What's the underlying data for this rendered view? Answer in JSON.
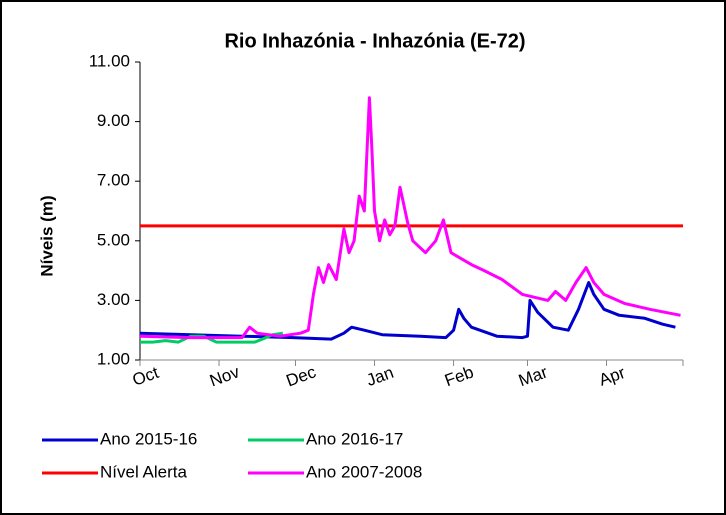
{
  "chart_data": {
    "type": "line",
    "title": "Rio Inhazónia - Inhazónia (E-72)",
    "y_label": "Níveis (m)",
    "xlim": [
      0,
      213
    ],
    "ylim": [
      1,
      11
    ],
    "xticks": [
      {
        "value": 0,
        "label": "Oct"
      },
      {
        "value": 31,
        "label": "Nov"
      },
      {
        "value": 61,
        "label": "Dec"
      },
      {
        "value": 92,
        "label": "Jan"
      },
      {
        "value": 123,
        "label": "Feb"
      },
      {
        "value": 152,
        "label": "Mar"
      },
      {
        "value": 183,
        "label": "Apr"
      },
      213
    ],
    "yticks": [
      {
        "value": 1,
        "label": "1.00"
      },
      {
        "value": 3,
        "label": "3.00"
      },
      {
        "value": 5,
        "label": "5.00"
      },
      {
        "value": 7,
        "label": "7.00"
      },
      {
        "value": 9,
        "label": "9.00"
      },
      {
        "value": 11,
        "label": "11.00"
      }
    ],
    "series": [
      {
        "name": "Ano 2015-16",
        "color": "#0000cc",
        "x": [
          0,
          20,
          40,
          60,
          75,
          80,
          83,
          88,
          95,
          110,
          120,
          123,
          125,
          127,
          130,
          140,
          150,
          152,
          153,
          156,
          162,
          168,
          172,
          176,
          178,
          182,
          188,
          198,
          205,
          210
        ],
        "values": [
          1.9,
          1.85,
          1.8,
          1.75,
          1.7,
          1.9,
          2.1,
          2.0,
          1.85,
          1.8,
          1.75,
          2.0,
          2.7,
          2.4,
          2.1,
          1.8,
          1.75,
          1.8,
          3.0,
          2.6,
          2.1,
          2.0,
          2.7,
          3.6,
          3.2,
          2.7,
          2.5,
          2.4,
          2.2,
          2.1
        ]
      },
      {
        "name": "Ano 2016-17",
        "color": "#00cc66",
        "x": [
          0,
          5,
          10,
          15,
          20,
          25,
          30,
          35,
          40,
          45,
          48,
          52,
          56
        ],
        "values": [
          1.6,
          1.6,
          1.65,
          1.6,
          1.8,
          1.8,
          1.6,
          1.6,
          1.6,
          1.6,
          1.7,
          1.85,
          1.9
        ]
      },
      {
        "name": "Nível Alerta",
        "color": "#ff0000",
        "x": [
          0,
          213
        ],
        "values": [
          5.5,
          5.5
        ]
      },
      {
        "name": "Ano 2007-2008",
        "color": "#ff00ff",
        "x": [
          0,
          20,
          40,
          43,
          46,
          55,
          63,
          66,
          68,
          70,
          72,
          74,
          77,
          80,
          82,
          84,
          86,
          88,
          90,
          91,
          92,
          94,
          96,
          98,
          100,
          102,
          103,
          105,
          107,
          112,
          116,
          119,
          122,
          130,
          135,
          142,
          150,
          155,
          160,
          163,
          167,
          171,
          175,
          178,
          182,
          190,
          200,
          212
        ],
        "values": [
          1.8,
          1.75,
          1.75,
          2.1,
          1.9,
          1.8,
          1.9,
          2.0,
          3.2,
          4.1,
          3.6,
          4.2,
          3.7,
          5.4,
          4.6,
          5.0,
          6.5,
          6.0,
          9.8,
          8.0,
          6.0,
          5.0,
          5.7,
          5.2,
          5.5,
          6.8,
          6.4,
          5.6,
          5.0,
          4.6,
          5.0,
          5.7,
          4.6,
          4.2,
          4.0,
          3.7,
          3.2,
          3.1,
          3.0,
          3.3,
          3.0,
          3.6,
          4.1,
          3.6,
          3.2,
          2.9,
          2.7,
          2.5
        ]
      }
    ]
  }
}
